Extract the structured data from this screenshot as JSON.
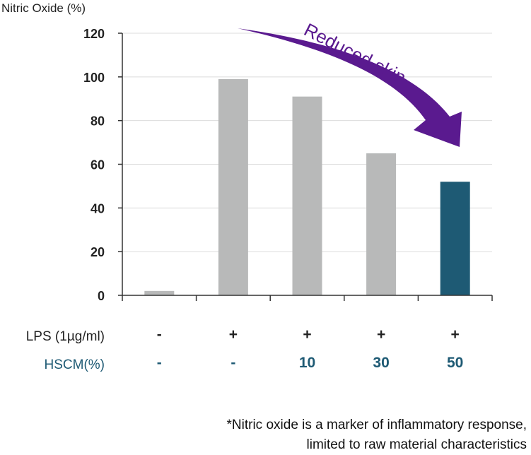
{
  "chart_data": {
    "type": "bar",
    "ylabel": "Nitric Oxide (%)",
    "ylim": [
      0,
      120
    ],
    "yticks": [
      0,
      20,
      40,
      60,
      80,
      100,
      120
    ],
    "grid": true,
    "values": [
      2,
      99,
      91,
      65,
      52
    ],
    "highlight_index": 4,
    "colors": {
      "bar": "#b8b9b9",
      "highlight": "#1e5a74",
      "arrow": "#5a1a8f",
      "hscm_text": "#1e5a74",
      "grid": "#dcdcdc"
    },
    "arrow_label": "Reduced skin",
    "conditions": [
      {
        "label": "LPS (1µg/ml)",
        "values": [
          "-",
          "+",
          "+",
          "+",
          "+"
        ]
      },
      {
        "label": "HSCM(%)",
        "values": [
          "-",
          "-",
          "10",
          "30",
          "50"
        ]
      }
    ]
  },
  "footnote": {
    "line1": "*Nitric oxide is a marker of inflammatory response,",
    "line2": "limited to raw material characteristics"
  }
}
